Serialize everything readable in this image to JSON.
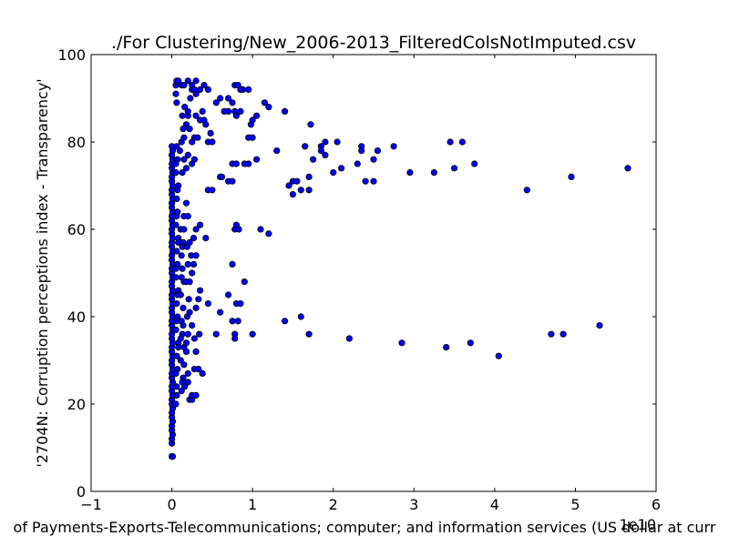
{
  "chart_data": {
    "type": "scatter",
    "title": "./For Clustering/New_2006-2013_FilteredColsNotImputed.csv",
    "xlabel": "of Payments-Exports-Telecommunications; computer; and information services (US dollar at curr",
    "ylabel": "'2704N: Corruption perceptions index - Transparency'",
    "x_offset_label": "1e10",
    "xlim": [
      -1,
      6
    ],
    "ylim": [
      0,
      100
    ],
    "xticks": [
      "−1",
      "0",
      "1",
      "2",
      "3",
      "4",
      "5",
      "6"
    ],
    "yticks": [
      "0",
      "20",
      "40",
      "60",
      "80",
      "100"
    ],
    "marker_color": "#0000ff",
    "marker_edge": "#000000",
    "grid": false,
    "points": [
      [
        0.0,
        8
      ],
      [
        0.01,
        8
      ],
      [
        0.0,
        11
      ],
      [
        0.0,
        12
      ],
      [
        0.01,
        13
      ],
      [
        0.0,
        14
      ],
      [
        0.0,
        15
      ],
      [
        0.01,
        16
      ],
      [
        0.0,
        17
      ],
      [
        0.0,
        18
      ],
      [
        0.01,
        19
      ],
      [
        0.0,
        20
      ],
      [
        0.0,
        21
      ],
      [
        0.01,
        22
      ],
      [
        0.0,
        23
      ],
      [
        0.0,
        24
      ],
      [
        0.01,
        25
      ],
      [
        0.0,
        26
      ],
      [
        0.0,
        27
      ],
      [
        0.01,
        28
      ],
      [
        0.0,
        29
      ],
      [
        0.0,
        30
      ],
      [
        0.01,
        31
      ],
      [
        0.0,
        32
      ],
      [
        0.0,
        33
      ],
      [
        0.01,
        34
      ],
      [
        0.0,
        35
      ],
      [
        0.0,
        36
      ],
      [
        0.01,
        37
      ],
      [
        0.0,
        38
      ],
      [
        0.0,
        39
      ],
      [
        0.01,
        40
      ],
      [
        0.0,
        41
      ],
      [
        0.0,
        42
      ],
      [
        0.01,
        43
      ],
      [
        0.0,
        44
      ],
      [
        0.0,
        45
      ],
      [
        0.01,
        46
      ],
      [
        0.0,
        47
      ],
      [
        0.0,
        48
      ],
      [
        0.01,
        49
      ],
      [
        0.0,
        50
      ],
      [
        0.0,
        51
      ],
      [
        0.01,
        52
      ],
      [
        0.0,
        53
      ],
      [
        0.0,
        54
      ],
      [
        0.01,
        55
      ],
      [
        0.0,
        56
      ],
      [
        0.0,
        57
      ],
      [
        0.01,
        58
      ],
      [
        0.0,
        59
      ],
      [
        0.0,
        60
      ],
      [
        0.01,
        61
      ],
      [
        0.0,
        62
      ],
      [
        0.0,
        63
      ],
      [
        0.01,
        64
      ],
      [
        0.0,
        65
      ],
      [
        0.0,
        66
      ],
      [
        0.01,
        67
      ],
      [
        0.0,
        68
      ],
      [
        0.0,
        69
      ],
      [
        0.01,
        70
      ],
      [
        0.0,
        71
      ],
      [
        0.0,
        72
      ],
      [
        0.01,
        73
      ],
      [
        0.0,
        74
      ],
      [
        0.0,
        75
      ],
      [
        0.01,
        76
      ],
      [
        0.0,
        77
      ],
      [
        0.01,
        78
      ],
      [
        0.0,
        79
      ],
      [
        0.05,
        20
      ],
      [
        0.06,
        24
      ],
      [
        0.07,
        28
      ],
      [
        0.06,
        31
      ],
      [
        0.08,
        34
      ],
      [
        0.05,
        37
      ],
      [
        0.07,
        40
      ],
      [
        0.06,
        43
      ],
      [
        0.08,
        46
      ],
      [
        0.05,
        49
      ],
      [
        0.07,
        52
      ],
      [
        0.06,
        55
      ],
      [
        0.08,
        58
      ],
      [
        0.05,
        61
      ],
      [
        0.07,
        64
      ],
      [
        0.06,
        67
      ],
      [
        0.08,
        70
      ],
      [
        0.05,
        73
      ],
      [
        0.07,
        76
      ],
      [
        0.06,
        22
      ],
      [
        0.05,
        27
      ],
      [
        0.08,
        33
      ],
      [
        0.06,
        39
      ],
      [
        0.07,
        45
      ],
      [
        0.05,
        51
      ],
      [
        0.08,
        57
      ],
      [
        0.06,
        63
      ],
      [
        0.07,
        69
      ],
      [
        0.05,
        75
      ],
      [
        0.06,
        79
      ],
      [
        0.12,
        23
      ],
      [
        0.14,
        26
      ],
      [
        0.11,
        30
      ],
      [
        0.15,
        33
      ],
      [
        0.13,
        36
      ],
      [
        0.12,
        39
      ],
      [
        0.14,
        42
      ],
      [
        0.11,
        45
      ],
      [
        0.15,
        48
      ],
      [
        0.13,
        51
      ],
      [
        0.12,
        54
      ],
      [
        0.14,
        57
      ],
      [
        0.11,
        60
      ],
      [
        0.15,
        63
      ],
      [
        0.13,
        56
      ],
      [
        0.12,
        49
      ],
      [
        0.14,
        38
      ],
      [
        0.11,
        35
      ],
      [
        0.15,
        29
      ],
      [
        0.13,
        25
      ],
      [
        0.18,
        32
      ],
      [
        0.2,
        36
      ],
      [
        0.19,
        40
      ],
      [
        0.21,
        44
      ],
      [
        0.18,
        48
      ],
      [
        0.2,
        52
      ],
      [
        0.19,
        56
      ],
      [
        0.22,
        41
      ],
      [
        0.18,
        34
      ],
      [
        0.2,
        27
      ],
      [
        0.16,
        24
      ],
      [
        0.2,
        25
      ],
      [
        0.22,
        21
      ],
      [
        0.25,
        21
      ],
      [
        0.25,
        22
      ],
      [
        0.3,
        22
      ],
      [
        0.28,
        28
      ],
      [
        0.33,
        28
      ],
      [
        0.38,
        27
      ],
      [
        0.3,
        32
      ],
      [
        0.25,
        38
      ],
      [
        0.3,
        42
      ],
      [
        0.33,
        44
      ],
      [
        0.35,
        46
      ],
      [
        0.28,
        35
      ],
      [
        0.34,
        36
      ],
      [
        0.22,
        48
      ],
      [
        0.25,
        50
      ],
      [
        0.27,
        52
      ],
      [
        0.24,
        54
      ],
      [
        0.3,
        54
      ],
      [
        0.27,
        58
      ],
      [
        0.3,
        60
      ],
      [
        0.35,
        61
      ],
      [
        0.42,
        58
      ],
      [
        0.45,
        43
      ],
      [
        0.55,
        36
      ],
      [
        0.6,
        41
      ],
      [
        0.7,
        45
      ],
      [
        0.75,
        39
      ],
      [
        0.82,
        39
      ],
      [
        0.78,
        36
      ],
      [
        0.78,
        35
      ],
      [
        0.8,
        43
      ],
      [
        0.85,
        43
      ],
      [
        0.9,
        48
      ],
      [
        0.75,
        52
      ],
      [
        0.78,
        60
      ],
      [
        0.8,
        61
      ],
      [
        0.83,
        60
      ],
      [
        0.75,
        75
      ],
      [
        0.8,
        75
      ],
      [
        0.9,
        75
      ],
      [
        0.95,
        75
      ],
      [
        0.7,
        71
      ],
      [
        0.75,
        71
      ],
      [
        0.45,
        69
      ],
      [
        0.5,
        69
      ],
      [
        0.6,
        72
      ],
      [
        0.1,
        78
      ],
      [
        0.12,
        80
      ],
      [
        0.15,
        81
      ],
      [
        0.14,
        83
      ],
      [
        0.13,
        86
      ],
      [
        0.18,
        84
      ],
      [
        0.2,
        86
      ],
      [
        0.22,
        83
      ],
      [
        0.25,
        80
      ],
      [
        0.28,
        81
      ],
      [
        0.3,
        86
      ],
      [
        0.32,
        81
      ],
      [
        0.35,
        85
      ],
      [
        0.38,
        87
      ],
      [
        0.4,
        85
      ],
      [
        0.42,
        84
      ],
      [
        0.45,
        80
      ],
      [
        0.48,
        82
      ],
      [
        0.5,
        80
      ],
      [
        0.15,
        76
      ],
      [
        0.2,
        77
      ],
      [
        0.18,
        74
      ],
      [
        0.25,
        75
      ],
      [
        0.28,
        76
      ],
      [
        0.13,
        73
      ],
      [
        0.16,
        88
      ],
      [
        0.2,
        87
      ],
      [
        0.23,
        90
      ],
      [
        0.25,
        92
      ],
      [
        0.3,
        91
      ],
      [
        0.35,
        92
      ],
      [
        0.05,
        93
      ],
      [
        0.06,
        94
      ],
      [
        0.08,
        94
      ],
      [
        0.05,
        91
      ],
      [
        0.06,
        89
      ],
      [
        0.12,
        93
      ],
      [
        0.15,
        93
      ],
      [
        0.2,
        94
      ],
      [
        0.25,
        93
      ],
      [
        0.3,
        94
      ],
      [
        0.28,
        92
      ],
      [
        0.4,
        93
      ],
      [
        0.45,
        92
      ],
      [
        0.55,
        89
      ],
      [
        0.6,
        90
      ],
      [
        0.7,
        90
      ],
      [
        0.65,
        87
      ],
      [
        0.7,
        87
      ],
      [
        0.75,
        89
      ],
      [
        0.78,
        87
      ],
      [
        0.8,
        86
      ],
      [
        0.85,
        87
      ],
      [
        0.78,
        93
      ],
      [
        0.82,
        93
      ],
      [
        0.88,
        92
      ],
      [
        0.95,
        92
      ],
      [
        0.85,
        92
      ],
      [
        0.95,
        81
      ],
      [
        1.0,
        81
      ],
      [
        1.0,
        85
      ],
      [
        0.98,
        84
      ],
      [
        1.05,
        86
      ],
      [
        1.15,
        89
      ],
      [
        1.2,
        88
      ],
      [
        1.4,
        87
      ],
      [
        1.3,
        78
      ],
      [
        1.45,
        70
      ],
      [
        1.5,
        68
      ],
      [
        1.5,
        71
      ],
      [
        1.55,
        71
      ],
      [
        1.6,
        69
      ],
      [
        1.7,
        69
      ],
      [
        1.65,
        79
      ],
      [
        1.75,
        76
      ],
      [
        1.7,
        72
      ],
      [
        1.72,
        84
      ],
      [
        1.85,
        79
      ],
      [
        1.85,
        78
      ],
      [
        1.9,
        80
      ],
      [
        1.9,
        77
      ],
      [
        2.0,
        73
      ],
      [
        2.05,
        80
      ],
      [
        2.1,
        74
      ],
      [
        2.3,
        75
      ],
      [
        2.35,
        79
      ],
      [
        2.35,
        78
      ],
      [
        2.4,
        71
      ],
      [
        2.5,
        71
      ],
      [
        2.5,
        76
      ],
      [
        2.55,
        78
      ],
      [
        2.75,
        79
      ],
      [
        2.95,
        73
      ],
      [
        3.25,
        73
      ],
      [
        3.45,
        80
      ],
      [
        3.5,
        74
      ],
      [
        3.6,
        80
      ],
      [
        3.75,
        75
      ],
      [
        4.4,
        69
      ],
      [
        4.95,
        72
      ],
      [
        5.65,
        74
      ],
      [
        1.0,
        36
      ],
      [
        1.4,
        39
      ],
      [
        1.6,
        40
      ],
      [
        1.7,
        36
      ],
      [
        2.2,
        35
      ],
      [
        2.85,
        34
      ],
      [
        3.4,
        33
      ],
      [
        3.7,
        34
      ],
      [
        4.05,
        31
      ],
      [
        4.7,
        36
      ],
      [
        4.85,
        36
      ],
      [
        5.3,
        38
      ],
      [
        1.1,
        60
      ],
      [
        1.2,
        59
      ],
      [
        1.05,
        76
      ],
      [
        0.62,
        72
      ],
      [
        0.22,
        57
      ],
      [
        0.18,
        66
      ],
      [
        0.2,
        63
      ],
      [
        0.15,
        60
      ]
    ]
  }
}
